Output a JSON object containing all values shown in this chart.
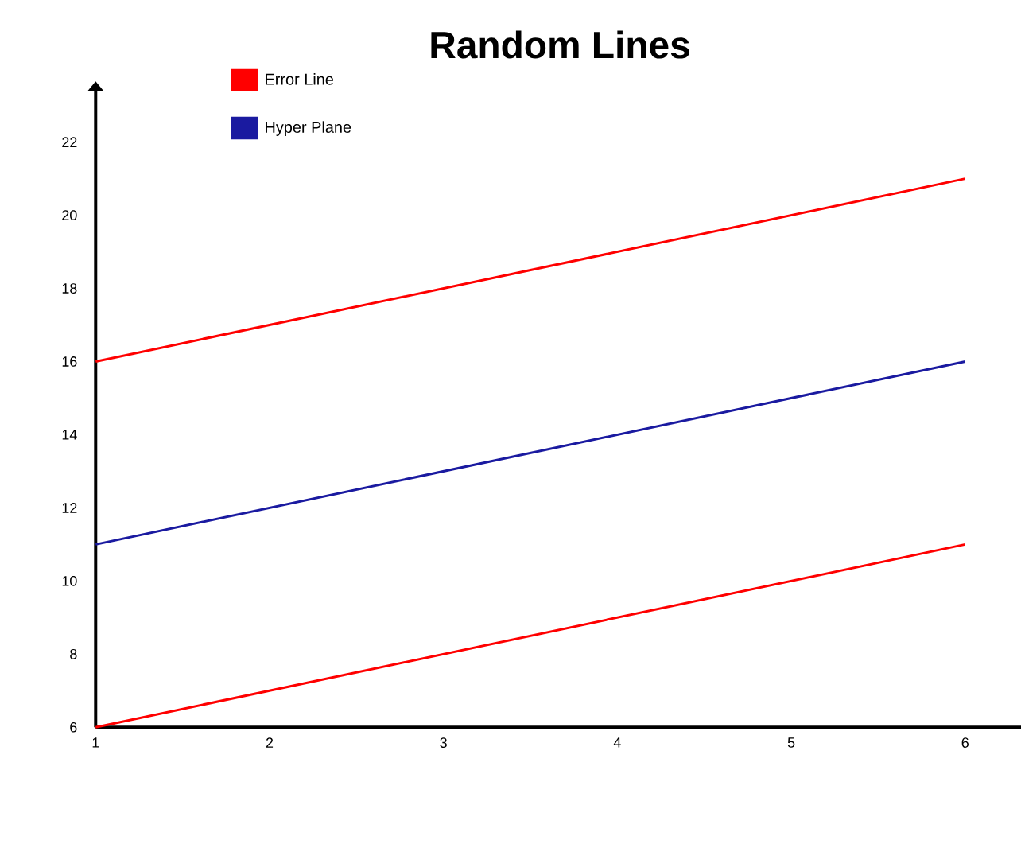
{
  "chart_data": {
    "type": "line",
    "title": "Random Lines",
    "x": [
      1,
      6
    ],
    "series": [
      {
        "name": "Error Line",
        "color": "#ff0000",
        "values": [
          16,
          21
        ]
      },
      {
        "name": "Hyper Plane",
        "color": "#1a1aa0",
        "values": [
          11,
          16
        ]
      },
      {
        "color": "#ff0000",
        "values": [
          6,
          11
        ]
      }
    ],
    "xlim": [
      1,
      6.35
    ],
    "ylim": [
      6,
      23.4
    ],
    "xticks": [
      1,
      2,
      3,
      4,
      5,
      6
    ],
    "yticks": [
      6,
      8,
      10,
      12,
      14,
      16,
      18,
      20,
      22
    ],
    "grid": false,
    "legend": "top left",
    "marker": "none",
    "line_style": "solid"
  }
}
